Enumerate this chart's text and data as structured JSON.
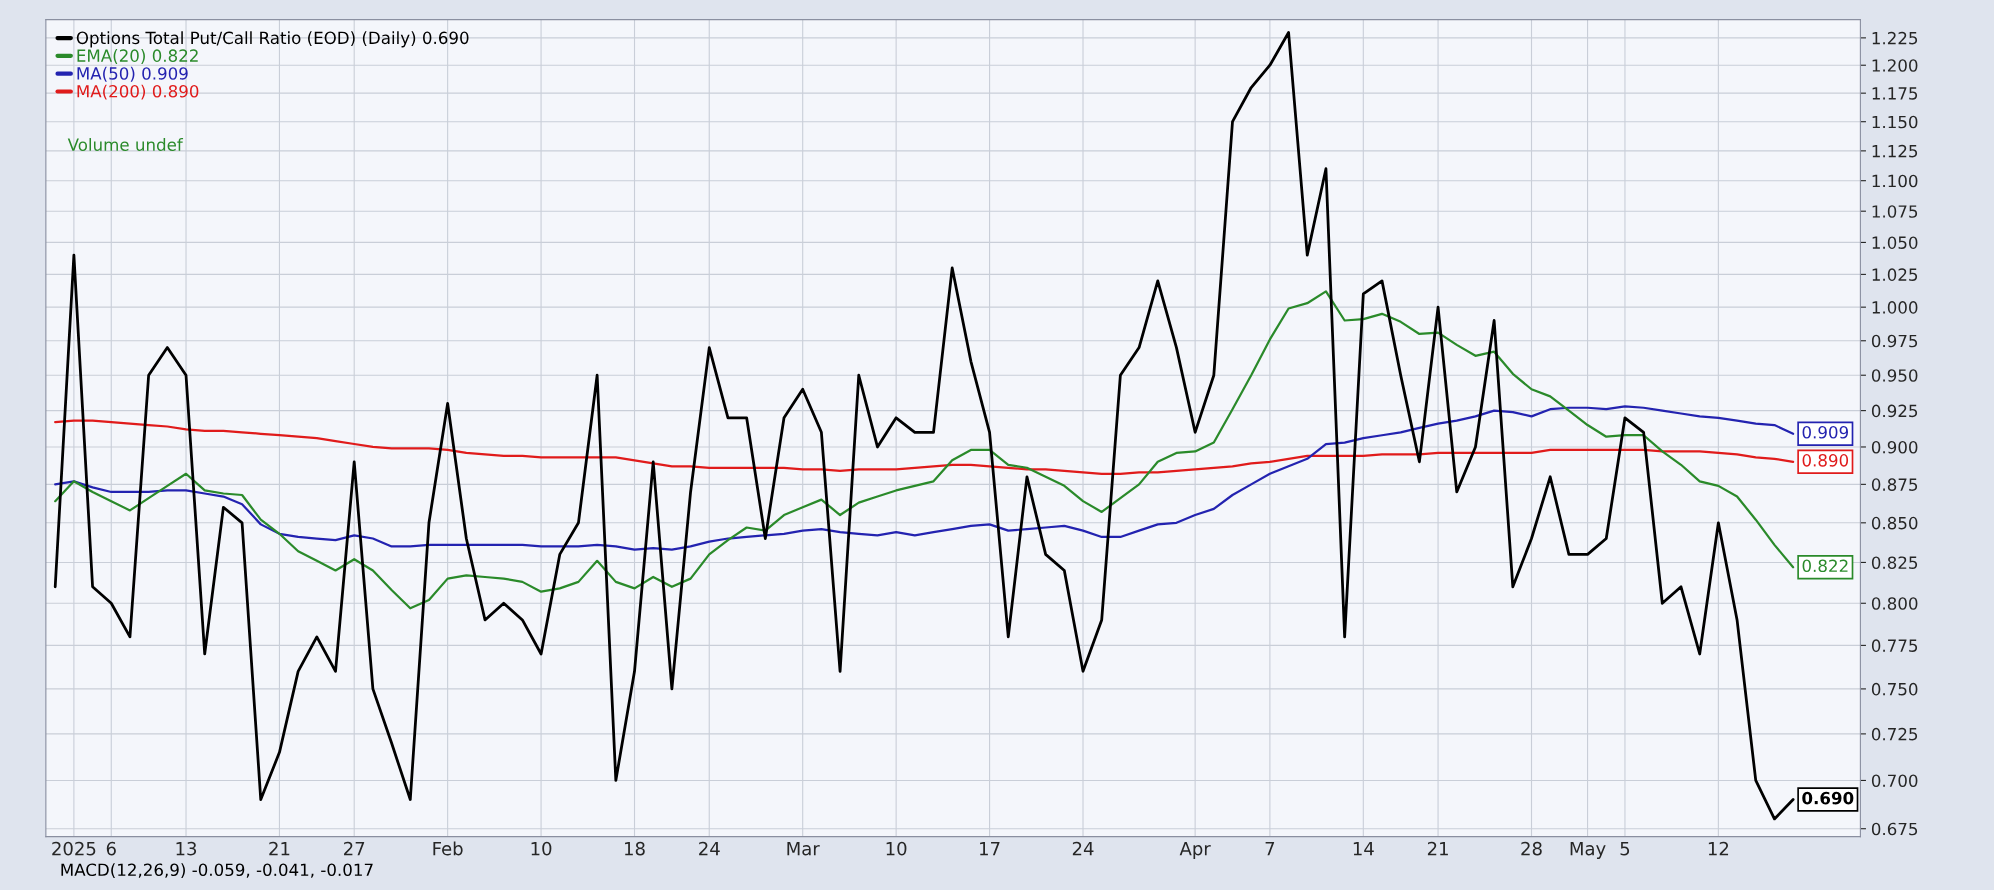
{
  "chart_data": {
    "type": "line",
    "categories": [
      null,
      "2025",
      null,
      "6",
      null,
      null,
      null,
      "13",
      null,
      null,
      null,
      null,
      "21",
      null,
      null,
      null,
      "27",
      null,
      null,
      null,
      null,
      "Feb",
      null,
      null,
      null,
      null,
      "10",
      null,
      null,
      null,
      null,
      "18",
      null,
      null,
      null,
      "24",
      null,
      null,
      null,
      null,
      "Mar",
      null,
      null,
      null,
      null,
      "10",
      null,
      null,
      null,
      null,
      "17",
      null,
      null,
      null,
      null,
      "24",
      null,
      null,
      null,
      null,
      null,
      "Apr",
      null,
      null,
      null,
      "7",
      null,
      null,
      null,
      null,
      "14",
      null,
      null,
      null,
      "21",
      null,
      null,
      null,
      null,
      "28",
      null,
      null,
      "May",
      null,
      "5",
      null,
      null,
      null,
      null,
      "12",
      null,
      null,
      null,
      null
    ],
    "series": [
      {
        "name": "Options Total Put/Call Ratio (EOD) (Daily) 0.690",
        "color": "#000000",
        "values": [
          0.81,
          1.04,
          0.81,
          0.8,
          0.78,
          0.95,
          0.97,
          0.95,
          0.77,
          0.86,
          0.85,
          0.69,
          0.715,
          0.76,
          0.78,
          0.76,
          0.89,
          0.75,
          0.72,
          0.69,
          0.85,
          0.93,
          0.84,
          0.79,
          0.8,
          0.79,
          0.77,
          0.83,
          0.85,
          0.95,
          0.7,
          0.76,
          0.89,
          0.75,
          0.87,
          0.97,
          0.92,
          0.92,
          0.84,
          0.92,
          0.94,
          0.91,
          0.76,
          0.95,
          0.9,
          0.92,
          0.91,
          0.91,
          1.03,
          0.96,
          0.91,
          0.78,
          0.88,
          0.83,
          0.82,
          0.76,
          0.79,
          0.95,
          0.97,
          1.02,
          0.97,
          0.91,
          0.95,
          1.15,
          1.18,
          1.2,
          1.23,
          1.04,
          1.11,
          0.78,
          1.01,
          1.02,
          0.95,
          0.89,
          1.0,
          0.87,
          0.9,
          0.99,
          0.81,
          0.84,
          0.88,
          0.83,
          0.83,
          0.84,
          0.92,
          0.91,
          0.8,
          0.81,
          0.77,
          0.85,
          0.79,
          0.7,
          0.68,
          0.69
        ],
        "value_labels": [
          null,
          null,
          null,
          null,
          null,
          null,
          null,
          null,
          null,
          null,
          null,
          null,
          null,
          null,
          null,
          null,
          null,
          null,
          null,
          null,
          null,
          null,
          null,
          null,
          null,
          null,
          null,
          null,
          null,
          null,
          null,
          null,
          null,
          null,
          null,
          null,
          null,
          null,
          null,
          null,
          null,
          null,
          null,
          null,
          null,
          null,
          null,
          null,
          null,
          null,
          null,
          null,
          null,
          null,
          null,
          null,
          null,
          null,
          null,
          null,
          null,
          null,
          null,
          null,
          null,
          null,
          null,
          null,
          null,
          null,
          null,
          null,
          null,
          null,
          null,
          null,
          null,
          null,
          null,
          null,
          null,
          null,
          null,
          null,
          null,
          null,
          null,
          null,
          null,
          null,
          null,
          null,
          null,
          "0.690"
        ]
      },
      {
        "name": "EMA(20) 0.822",
        "color": "#2a8a2a",
        "values": [
          0.864,
          0.877,
          0.87,
          0.864,
          0.858,
          0.866,
          0.874,
          0.882,
          0.871,
          0.869,
          0.868,
          0.852,
          0.843,
          0.832,
          0.826,
          0.82,
          0.827,
          0.82,
          0.808,
          0.797,
          0.802,
          0.815,
          0.817,
          0.816,
          0.815,
          0.813,
          0.807,
          0.809,
          0.813,
          0.826,
          0.813,
          0.809,
          0.816,
          0.81,
          0.815,
          0.83,
          0.839,
          0.847,
          0.845,
          0.855,
          0.86,
          0.865,
          0.855,
          0.863,
          0.867,
          0.871,
          0.874,
          0.877,
          0.891,
          0.898,
          0.898,
          0.888,
          0.886,
          0.88,
          0.874,
          0.864,
          0.857,
          0.866,
          0.875,
          0.89,
          0.896,
          0.897,
          0.903,
          0.926,
          0.95,
          0.976,
          0.999,
          1.003,
          1.012,
          0.99,
          0.991,
          0.995,
          0.989,
          0.98,
          0.981,
          0.972,
          0.964,
          0.967,
          0.951,
          0.94,
          0.935,
          0.925,
          0.915,
          0.907,
          0.908,
          0.908,
          0.897,
          0.888,
          0.877,
          0.874,
          0.867,
          0.852,
          0.836,
          0.822
        ],
        "value_labels": [
          null,
          null,
          null,
          null,
          null,
          null,
          null,
          null,
          null,
          null,
          null,
          null,
          null,
          null,
          null,
          null,
          null,
          null,
          null,
          null,
          null,
          null,
          null,
          null,
          null,
          null,
          null,
          null,
          null,
          null,
          null,
          null,
          null,
          null,
          null,
          null,
          null,
          null,
          null,
          null,
          null,
          null,
          null,
          null,
          null,
          null,
          null,
          null,
          null,
          null,
          null,
          null,
          null,
          null,
          null,
          null,
          null,
          null,
          null,
          null,
          null,
          null,
          null,
          null,
          null,
          null,
          null,
          null,
          null,
          null,
          null,
          null,
          null,
          null,
          null,
          null,
          null,
          null,
          null,
          null,
          null,
          null,
          null,
          null,
          null,
          null,
          null,
          null,
          null,
          null,
          null,
          null,
          null,
          "0.822"
        ]
      },
      {
        "name": "MA(50) 0.909",
        "color": "#2323b0",
        "values": [
          0.875,
          0.877,
          0.873,
          0.87,
          0.87,
          0.87,
          0.871,
          0.871,
          0.869,
          0.867,
          0.862,
          0.849,
          0.843,
          0.841,
          0.84,
          0.839,
          0.842,
          0.84,
          0.835,
          0.835,
          0.836,
          0.836,
          0.836,
          0.836,
          0.836,
          0.836,
          0.835,
          0.835,
          0.835,
          0.836,
          0.835,
          0.833,
          0.834,
          0.833,
          0.835,
          0.838,
          0.84,
          0.841,
          0.842,
          0.843,
          0.845,
          0.846,
          0.844,
          0.843,
          0.842,
          0.844,
          0.842,
          0.844,
          0.846,
          0.848,
          0.849,
          0.845,
          0.846,
          0.847,
          0.848,
          0.845,
          0.841,
          0.841,
          0.845,
          0.849,
          0.85,
          0.855,
          0.859,
          0.868,
          0.875,
          0.882,
          0.887,
          0.892,
          0.902,
          0.903,
          0.906,
          0.908,
          0.91,
          0.913,
          0.916,
          0.918,
          0.921,
          0.925,
          0.924,
          0.921,
          0.926,
          0.927,
          0.927,
          0.926,
          0.928,
          0.927,
          0.925,
          0.923,
          0.921,
          0.92,
          0.918,
          0.916,
          0.915,
          0.909
        ],
        "value_labels": [
          null,
          null,
          null,
          null,
          null,
          null,
          null,
          null,
          null,
          null,
          null,
          null,
          null,
          null,
          null,
          null,
          null,
          null,
          null,
          null,
          null,
          null,
          null,
          null,
          null,
          null,
          null,
          null,
          null,
          null,
          null,
          null,
          null,
          null,
          null,
          null,
          null,
          null,
          null,
          null,
          null,
          null,
          null,
          null,
          null,
          null,
          null,
          null,
          null,
          null,
          null,
          null,
          null,
          null,
          null,
          null,
          null,
          null,
          null,
          null,
          null,
          null,
          null,
          null,
          null,
          null,
          null,
          null,
          null,
          null,
          null,
          null,
          null,
          null,
          null,
          null,
          null,
          null,
          null,
          null,
          null,
          null,
          null,
          null,
          null,
          null,
          null,
          null,
          null,
          null,
          null,
          null,
          null,
          "0.909"
        ]
      },
      {
        "name": "MA(200) 0.890",
        "color": "#e01b1b",
        "values": [
          0.917,
          0.918,
          0.918,
          0.917,
          0.916,
          0.915,
          0.914,
          0.912,
          0.911,
          0.911,
          0.91,
          0.909,
          0.908,
          0.907,
          0.906,
          0.904,
          0.902,
          0.9,
          0.899,
          0.899,
          0.899,
          0.898,
          0.896,
          0.895,
          0.894,
          0.894,
          0.893,
          0.893,
          0.893,
          0.893,
          0.893,
          0.891,
          0.889,
          0.887,
          0.887,
          0.886,
          0.886,
          0.886,
          0.886,
          0.886,
          0.885,
          0.885,
          0.884,
          0.885,
          0.885,
          0.885,
          0.886,
          0.887,
          0.888,
          0.888,
          0.887,
          0.886,
          0.885,
          0.885,
          0.884,
          0.883,
          0.882,
          0.882,
          0.883,
          0.883,
          0.884,
          0.885,
          0.886,
          0.887,
          0.889,
          0.89,
          0.892,
          0.894,
          0.894,
          0.894,
          0.894,
          0.895,
          0.895,
          0.895,
          0.896,
          0.896,
          0.896,
          0.896,
          0.896,
          0.896,
          0.898,
          0.898,
          0.898,
          0.898,
          0.898,
          0.898,
          0.897,
          0.897,
          0.897,
          0.896,
          0.895,
          0.893,
          0.892,
          0.89
        ],
        "value_labels": [
          null,
          null,
          null,
          null,
          null,
          null,
          null,
          null,
          null,
          null,
          null,
          null,
          null,
          null,
          null,
          null,
          null,
          null,
          null,
          null,
          null,
          null,
          null,
          null,
          null,
          null,
          null,
          null,
          null,
          null,
          null,
          null,
          null,
          null,
          null,
          null,
          null,
          null,
          null,
          null,
          null,
          null,
          null,
          null,
          null,
          null,
          null,
          null,
          null,
          null,
          null,
          null,
          null,
          null,
          null,
          null,
          null,
          null,
          null,
          null,
          null,
          null,
          null,
          null,
          null,
          null,
          null,
          null,
          null,
          null,
          null,
          null,
          null,
          null,
          null,
          null,
          null,
          null,
          null,
          null,
          null,
          null,
          null,
          null,
          null,
          null,
          null,
          null,
          null,
          null,
          null,
          null,
          null,
          "0.890"
        ]
      }
    ],
    "log": true,
    "ylim": [
      0.671,
      1.242
    ],
    "yticks": [
      {
        "value": 0.675,
        "label": "0.675"
      },
      {
        "value": 0.7,
        "label": "0.700"
      },
      {
        "value": 0.725,
        "label": "0.725"
      },
      {
        "value": 0.75,
        "label": "0.750"
      },
      {
        "value": 0.775,
        "label": "0.775"
      },
      {
        "value": 0.8,
        "label": "0.800"
      },
      {
        "value": 0.825,
        "label": "0.825"
      },
      {
        "value": 0.85,
        "label": "0.850"
      },
      {
        "value": 0.875,
        "label": "0.875"
      },
      {
        "value": 0.9,
        "label": "0.900"
      },
      {
        "value": 0.925,
        "label": "0.925"
      },
      {
        "value": 0.95,
        "label": "0.950"
      },
      {
        "value": 0.975,
        "label": "0.975"
      },
      {
        "value": 1.0,
        "label": "1.000"
      },
      {
        "value": 1.025,
        "label": "1.025"
      },
      {
        "value": 1.05,
        "label": "1.050"
      },
      {
        "value": 1.075,
        "label": "1.075"
      },
      {
        "value": 1.1,
        "label": "1.100"
      },
      {
        "value": 1.125,
        "label": "1.125"
      },
      {
        "value": 1.15,
        "label": "1.150"
      },
      {
        "value": 1.175,
        "label": "1.175"
      },
      {
        "value": 1.2,
        "label": "1.200"
      },
      {
        "value": 1.225,
        "label": "1.225"
      }
    ],
    "grid": true,
    "legend": "top left",
    "marker": "none",
    "line_style": "solid",
    "annotations": [
      "Volume undef",
      "MACD(12,26,9) -0.059, -0.041, -0.017"
    ]
  }
}
